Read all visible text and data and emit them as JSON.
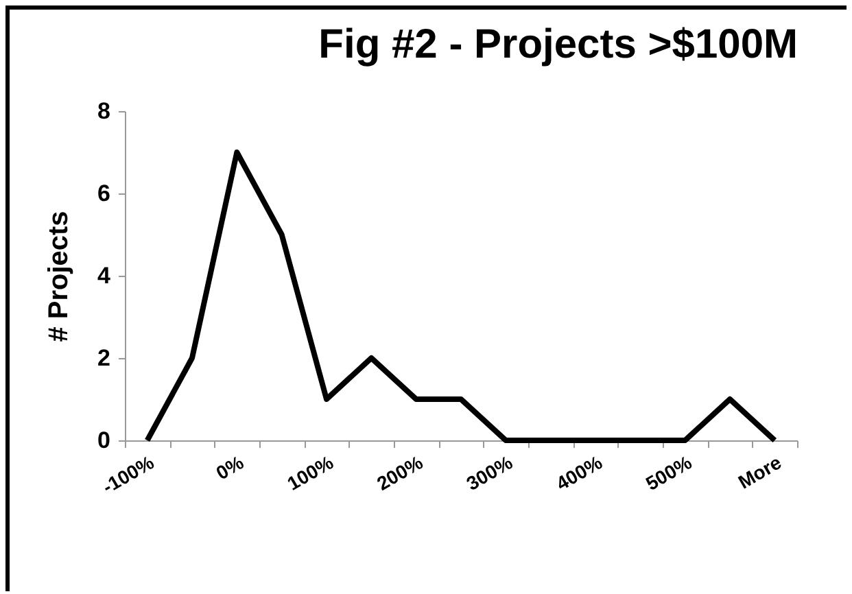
{
  "chart_data": {
    "type": "line",
    "title": "Fig #2 - Projects >$100M",
    "ylabel": "# Projects",
    "categories": [
      "-100%",
      null,
      "0%",
      null,
      "100%",
      null,
      "200%",
      null,
      "300%",
      null,
      "400%",
      null,
      "500%",
      null,
      "More"
    ],
    "series": [
      {
        "color": "#000000",
        "values": [
          0,
          2,
          7,
          5,
          1,
          2,
          1,
          1,
          0,
          0,
          0,
          0,
          0,
          1,
          0
        ]
      }
    ],
    "ylim": [
      0,
      8
    ],
    "yticks": [
      0,
      2,
      4,
      6,
      8
    ],
    "grid": false,
    "marker": "none",
    "line_style": "solid"
  }
}
